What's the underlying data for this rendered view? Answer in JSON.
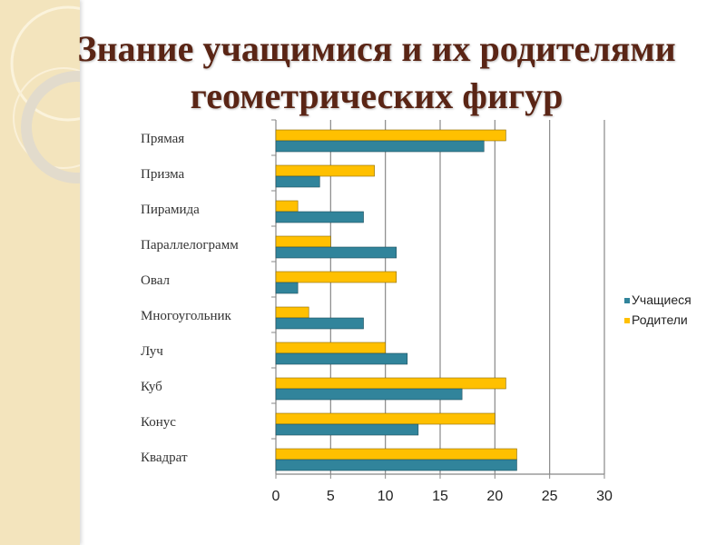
{
  "title": "Знание учащимися и их родителями геометрических фигур",
  "chart_data": {
    "type": "bar",
    "orientation": "horizontal",
    "title": "Знание учащимися и их родителями геометрических фигур",
    "categories": [
      "Прямая",
      "Призма",
      "Пирамида",
      "Параллелограмм",
      "Овал",
      "Многоугольник",
      "Луч",
      "Куб",
      "Конус",
      "Квадрат"
    ],
    "series": [
      {
        "name": "Учащиеся",
        "color": "#31849b",
        "values": [
          19,
          4,
          8,
          11,
          2,
          8,
          12,
          17,
          13,
          22
        ]
      },
      {
        "name": "Родители",
        "color": "#ffc000",
        "values": [
          21,
          9,
          2,
          5,
          11,
          3,
          10,
          21,
          20,
          22
        ]
      }
    ],
    "xlim": [
      0,
      30
    ],
    "xticks": [
      "0",
      "5",
      "10",
      "15",
      "20",
      "25",
      "30"
    ],
    "grid": true,
    "legend": "right",
    "xlabel": "",
    "ylabel": ""
  }
}
